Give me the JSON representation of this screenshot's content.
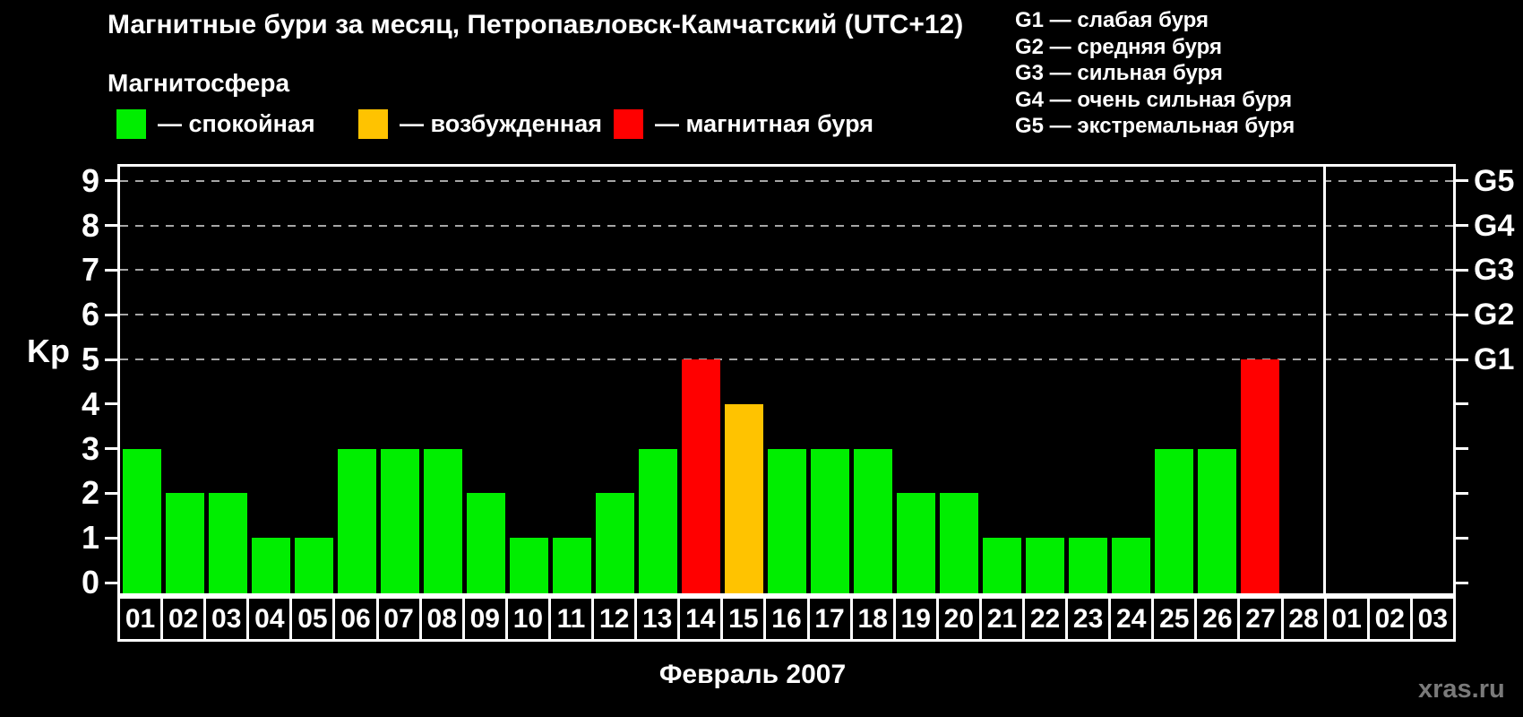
{
  "header": {
    "title": "Магнитные бури за месяц, Петропавловск-Камчатский (UTC+12)",
    "magnetosphere_label": "Магнитосфера",
    "legend": [
      {
        "state": "quiet",
        "color": "#00ee00",
        "label": "— спокойная"
      },
      {
        "state": "excited",
        "color": "#ffc300",
        "label": "— возбужденная"
      },
      {
        "state": "storm",
        "color": "#ff0000",
        "label": "— магнитная буря"
      }
    ],
    "g_scale_legend": [
      "G1 — слабая буря",
      "G2 — средняя буря",
      "G3 — сильная буря",
      "G4 — очень сильная буря",
      "G5 — экстремальная буря"
    ]
  },
  "chart_data": {
    "type": "bar",
    "title": "Магнитные бури за месяц, Петропавловск-Камчатский (UTC+12)",
    "xlabel": "Февраль 2007",
    "ylabel": "Kp",
    "ylim": [
      0,
      9
    ],
    "yticks": [
      0,
      1,
      2,
      3,
      4,
      5,
      6,
      7,
      8,
      9
    ],
    "gridlines_kp": [
      5,
      6,
      7,
      8,
      9
    ],
    "right_axis": [
      {
        "label": "G1",
        "kp": 5
      },
      {
        "label": "G2",
        "kp": 6
      },
      {
        "label": "G3",
        "kp": 7
      },
      {
        "label": "G4",
        "kp": 8
      },
      {
        "label": "G5",
        "kp": 9
      }
    ],
    "categories": [
      "01",
      "02",
      "03",
      "04",
      "05",
      "06",
      "07",
      "08",
      "09",
      "10",
      "11",
      "12",
      "13",
      "14",
      "15",
      "16",
      "17",
      "18",
      "19",
      "20",
      "21",
      "22",
      "23",
      "24",
      "25",
      "26",
      "27",
      "28",
      "01",
      "02",
      "03"
    ],
    "values": [
      3,
      2,
      2,
      1,
      1,
      3,
      3,
      3,
      2,
      1,
      1,
      2,
      3,
      5,
      4,
      3,
      3,
      3,
      2,
      2,
      1,
      1,
      1,
      1,
      3,
      3,
      5,
      null,
      null,
      null,
      null
    ],
    "states": [
      "quiet",
      "quiet",
      "quiet",
      "quiet",
      "quiet",
      "quiet",
      "quiet",
      "quiet",
      "quiet",
      "quiet",
      "quiet",
      "quiet",
      "quiet",
      "storm",
      "excited",
      "quiet",
      "quiet",
      "quiet",
      "quiet",
      "quiet",
      "quiet",
      "quiet",
      "quiet",
      "quiet",
      "quiet",
      "quiet",
      "storm",
      null,
      null,
      null,
      null
    ],
    "month_boundary_after_index": 27,
    "colors": {
      "quiet": "#00ee00",
      "excited": "#ffc300",
      "storm": "#ff0000"
    },
    "grid": "dashed-horizontal",
    "legend_position": "top-left",
    "background": "#000000"
  },
  "footer": {
    "month_label": "Февраль 2007",
    "watermark": "xras.ru"
  }
}
